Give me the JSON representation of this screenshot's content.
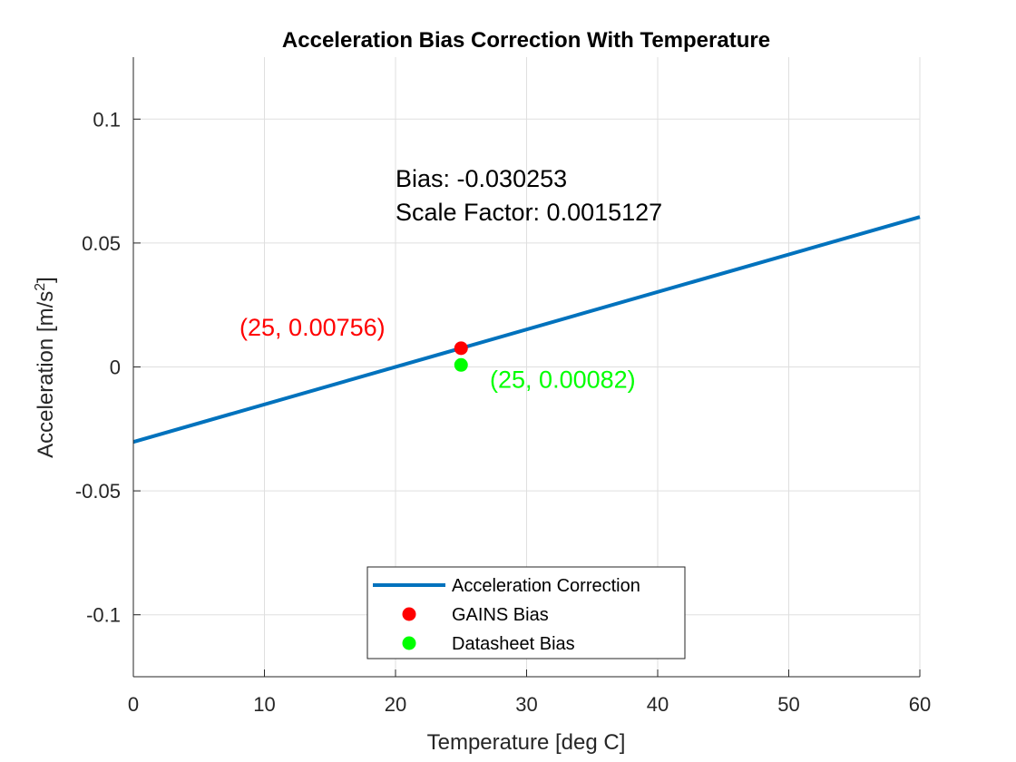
{
  "chart_data": {
    "type": "line",
    "title": "Acceleration Bias Correction With Temperature",
    "xlabel": "Temperature [deg C]",
    "ylabel": "Acceleration [m/s",
    "ylabel_sup": "2",
    "ylabel_suffix": "]",
    "xlim": [
      0,
      60
    ],
    "ylim": [
      -0.125,
      0.125
    ],
    "xticks": [
      0,
      10,
      20,
      30,
      40,
      50,
      60
    ],
    "xtick_labels": [
      "0",
      "10",
      "20",
      "30",
      "40",
      "50",
      "60"
    ],
    "yticks": [
      -0.1,
      -0.05,
      0,
      0.05,
      0.1
    ],
    "ytick_labels": [
      "-0.1",
      "-0.05",
      "0",
      "0.05",
      "0.1"
    ],
    "grid": true,
    "legend_position": "bottom-center",
    "series": [
      {
        "name": "Acceleration Correction",
        "kind": "line",
        "color": "#0072BD",
        "x": [
          0,
          60
        ],
        "y": [
          -0.030253,
          0.060509
        ]
      },
      {
        "name": "GAINS Bias",
        "kind": "marker",
        "color": "#FF0000",
        "x": [
          25
        ],
        "y": [
          0.00756
        ]
      },
      {
        "name": "Datasheet Bias",
        "kind": "marker",
        "color": "#00FF00",
        "x": [
          25
        ],
        "y": [
          0.00082
        ]
      }
    ],
    "annotations": [
      {
        "id": "bias",
        "text": "Bias: -0.030253",
        "x": 20,
        "y": 0.0727,
        "color": "#000000"
      },
      {
        "id": "scale",
        "text": "Scale Factor: 0.0015127",
        "x": 20,
        "y": 0.0592,
        "color": "#000000"
      },
      {
        "id": "gains",
        "text": "(25, 0.00756)",
        "x": 8.1,
        "y": 0.0126,
        "color": "#FF0000"
      },
      {
        "id": "datasheet",
        "text": "(25, 0.00082)",
        "x": 27.2,
        "y": -0.0085,
        "color": "#00FF00"
      }
    ]
  }
}
